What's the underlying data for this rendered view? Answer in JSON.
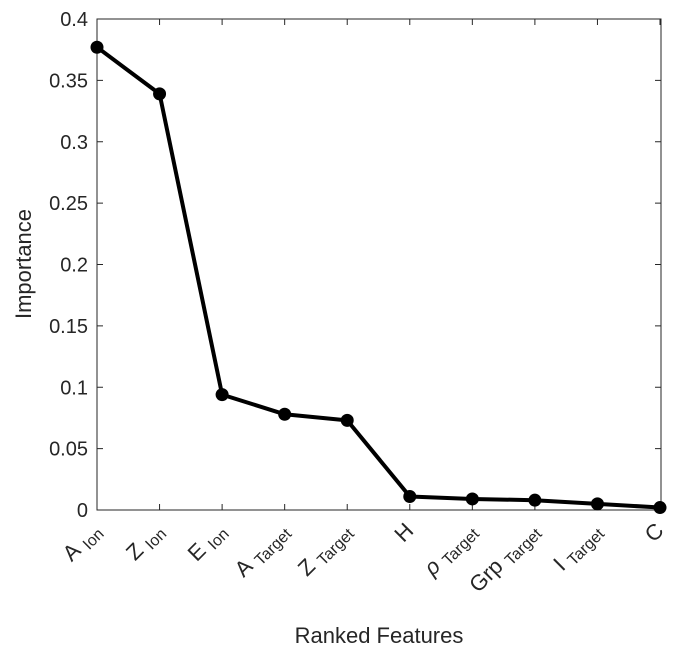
{
  "chart_data": {
    "type": "line",
    "xlabel": "Ranked Features",
    "ylabel": "Importance",
    "ylim": [
      0,
      0.4
    ],
    "yticks": [
      "0",
      "0.05",
      "0.1",
      "0.15",
      "0.2",
      "0.25",
      "0.3",
      "0.35",
      "0.4"
    ],
    "categories": [
      {
        "main": "A",
        "sub": "Ion"
      },
      {
        "main": "Z",
        "sub": "Ion"
      },
      {
        "main": "E",
        "sub": "Ion"
      },
      {
        "main": "A",
        "sub": "Target"
      },
      {
        "main": "Z",
        "sub": "Target"
      },
      {
        "main": "H",
        "sub": ""
      },
      {
        "main": "ρ",
        "sub": "Target"
      },
      {
        "main": "Grp",
        "sub": "Target"
      },
      {
        "main": "I",
        "sub": "Target"
      },
      {
        "main": "C",
        "sub": ""
      }
    ],
    "values": [
      0.377,
      0.339,
      0.094,
      0.078,
      0.073,
      0.011,
      0.009,
      0.008,
      0.005,
      0.002
    ],
    "grid": false,
    "box": true,
    "line_color": "#000000"
  }
}
